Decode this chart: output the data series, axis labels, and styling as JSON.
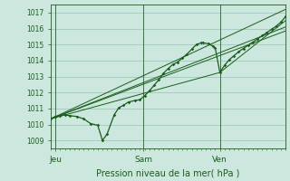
{
  "title": "Pression niveau de la mer( hPa )",
  "bg_color": "#cce8de",
  "grid_color": "#9abfb3",
  "line_color": "#1a5c1a",
  "ylim": [
    1008.5,
    1017.5
  ],
  "yticks": [
    1009,
    1010,
    1011,
    1012,
    1013,
    1014,
    1015,
    1016,
    1017
  ],
  "xlim": [
    0,
    1.0
  ],
  "x_day_labels": [
    [
      "Jeu",
      0.02
    ],
    [
      "Sam",
      0.395
    ],
    [
      "Ven",
      0.72
    ]
  ],
  "x_day_vlines": [
    0.02,
    0.395,
    0.72
  ],
  "main_series": [
    [
      0.0,
      1010.35
    ],
    [
      0.02,
      1010.5
    ],
    [
      0.04,
      1010.55
    ],
    [
      0.06,
      1010.6
    ],
    [
      0.08,
      1010.55
    ],
    [
      0.11,
      1010.5
    ],
    [
      0.14,
      1010.35
    ],
    [
      0.17,
      1010.05
    ],
    [
      0.2,
      1009.95
    ],
    [
      0.22,
      1009.0
    ],
    [
      0.24,
      1009.4
    ],
    [
      0.27,
      1010.6
    ],
    [
      0.29,
      1011.05
    ],
    [
      0.31,
      1011.2
    ],
    [
      0.33,
      1011.4
    ],
    [
      0.36,
      1011.5
    ],
    [
      0.38,
      1011.55
    ],
    [
      0.4,
      1011.8
    ],
    [
      0.42,
      1012.1
    ],
    [
      0.44,
      1012.45
    ],
    [
      0.46,
      1012.8
    ],
    [
      0.48,
      1013.2
    ],
    [
      0.5,
      1013.5
    ],
    [
      0.52,
      1013.75
    ],
    [
      0.54,
      1013.9
    ],
    [
      0.56,
      1014.15
    ],
    [
      0.58,
      1014.4
    ],
    [
      0.6,
      1014.7
    ],
    [
      0.62,
      1015.0
    ],
    [
      0.64,
      1015.1
    ],
    [
      0.65,
      1015.1
    ],
    [
      0.67,
      1015.05
    ],
    [
      0.69,
      1014.9
    ],
    [
      0.7,
      1014.8
    ],
    [
      0.72,
      1013.25
    ],
    [
      0.74,
      1013.7
    ],
    [
      0.76,
      1014.05
    ],
    [
      0.78,
      1014.3
    ],
    [
      0.8,
      1014.55
    ],
    [
      0.82,
      1014.75
    ],
    [
      0.84,
      1014.95
    ],
    [
      0.86,
      1015.15
    ],
    [
      0.88,
      1015.35
    ],
    [
      0.9,
      1015.55
    ],
    [
      0.92,
      1015.75
    ],
    [
      0.94,
      1015.95
    ],
    [
      0.96,
      1016.15
    ],
    [
      0.98,
      1016.4
    ],
    [
      1.0,
      1016.75
    ]
  ],
  "envelope_lines": [
    [
      [
        0.0,
        1010.35
      ],
      [
        1.0,
        1017.2
      ]
    ],
    [
      [
        0.0,
        1010.35
      ],
      [
        1.0,
        1016.1
      ]
    ],
    [
      [
        0.0,
        1010.35
      ],
      [
        1.0,
        1015.85
      ]
    ],
    [
      [
        0.0,
        1010.35
      ],
      [
        0.72,
        1013.25
      ],
      [
        1.0,
        1016.5
      ]
    ]
  ]
}
